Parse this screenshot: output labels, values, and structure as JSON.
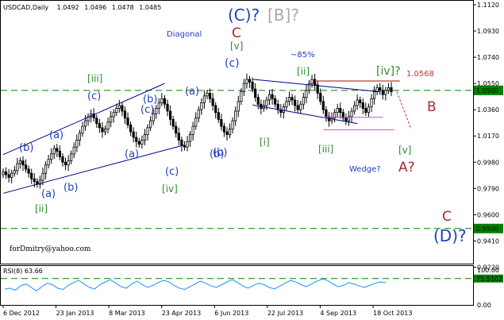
{
  "header": {
    "symbol": "USDCAD,Daily",
    "open": "1.0492",
    "high": "1.0496",
    "low": "1.0478",
    "close": "1.0485"
  },
  "rsi_header": "RSI(8) 63.66",
  "watermark": "forDmitry@yahoo.com",
  "colors": {
    "candle": "#000000",
    "dashed_green": "#008000",
    "channel": "#00008b",
    "wave_blue": "#1f3fbf",
    "wave_green": "#2e8b2e",
    "wave_red": "#a52a2a",
    "gray": "#a9a9a9",
    "target_line": "#c0392b",
    "magenta": "#dd44dd",
    "rsi_line": "#1e90ff",
    "price_badge_bg": "#008000"
  },
  "chart_data": {
    "type": "candlestick",
    "price_axis": {
      "min": 0.924,
      "max": 1.112,
      "ticks": [
        "1.1120",
        "1.0930",
        "1.0740",
        "1.0550",
        "1.0360",
        "1.0170",
        "0.9980",
        "0.9790",
        "0.9600",
        "0.9410",
        "0.9220"
      ]
    },
    "x_ticks": [
      "6 Dec 2012",
      "23 Jan 2013",
      "8 Mar 2013",
      "23 Apr 2013",
      "6 Jun 2013",
      "22 Jul 2013",
      "4 Sep 2013",
      "18 Oct 2013"
    ],
    "price_labels": [
      {
        "text": "1.0500",
        "value": 1.05
      },
      {
        "text": "0.9500",
        "value": 0.95
      }
    ],
    "horizontal_levels": [
      1.05,
      0.95
    ],
    "target_level": {
      "text": "1.0568",
      "value": 1.0568
    },
    "rsi": {
      "title": "RSI(8) 63.66",
      "current": 63.66,
      "ticks": [
        "100.00",
        "75.5102",
        "0.00"
      ],
      "levels": [
        75.5102
      ],
      "min": 0,
      "max": 100
    },
    "close_series": [
      0.991,
      0.989,
      0.987,
      0.99,
      0.992,
      0.997,
      0.999,
      0.996,
      0.993,
      0.99,
      0.986,
      0.984,
      0.982,
      0.985,
      0.99,
      0.996,
      1.0,
      1.004,
      1.008,
      1.006,
      1.002,
      0.998,
      0.996,
      0.999,
      1.004,
      1.009,
      1.014,
      1.019,
      1.024,
      1.028,
      1.031,
      1.033,
      1.03,
      1.026,
      1.023,
      1.02,
      1.022,
      1.027,
      1.031,
      1.034,
      1.037,
      1.039,
      1.035,
      1.03,
      1.025,
      1.02,
      1.016,
      1.013,
      1.011,
      1.014,
      1.018,
      1.023,
      1.028,
      1.033,
      1.037,
      1.041,
      1.044,
      1.04,
      1.035,
      1.029,
      1.024,
      1.019,
      1.014,
      1.01,
      1.009,
      1.013,
      1.018,
      1.024,
      1.03,
      1.036,
      1.041,
      1.046,
      1.048,
      1.044,
      1.039,
      1.034,
      1.029,
      1.024,
      1.02,
      1.018,
      1.022,
      1.028,
      1.035,
      1.042,
      1.049,
      1.055,
      1.058,
      1.056,
      1.051,
      1.045,
      1.04,
      1.037,
      1.039,
      1.043,
      1.047,
      1.044,
      1.04,
      1.036,
      1.034,
      1.038,
      1.042,
      1.045,
      1.043,
      1.039,
      1.036,
      1.04,
      1.045,
      1.05,
      1.055,
      1.058,
      1.054,
      1.048,
      1.042,
      1.036,
      1.031,
      1.028,
      1.03,
      1.034,
      1.037,
      1.034,
      1.03,
      1.028,
      1.031,
      1.035,
      1.039,
      1.043,
      1.041,
      1.037,
      1.034,
      1.038,
      1.044,
      1.049,
      1.052,
      1.05,
      1.047,
      1.05,
      1.052,
      1.049
    ],
    "rsi_series": [
      45,
      48,
      42,
      55,
      60,
      50,
      40,
      52,
      62,
      58,
      48,
      44,
      56,
      64,
      70,
      60,
      50,
      46,
      58,
      66,
      72,
      62,
      52,
      48,
      60,
      68,
      58,
      50,
      56,
      64,
      70,
      66,
      56,
      48,
      44,
      52,
      60,
      68,
      62,
      54,
      50,
      58,
      66,
      72,
      64,
      54,
      48,
      56,
      62,
      58,
      50,
      46,
      54,
      62,
      70,
      66,
      58,
      52,
      60,
      68,
      74,
      70,
      60,
      52,
      56,
      64,
      60,
      54,
      50,
      56,
      62,
      66,
      63.66
    ]
  },
  "annotations": [
    {
      "text": "(C)?",
      "color": "wave_blue",
      "size": 20,
      "name": "label-C-primary"
    },
    {
      "text": "[B]?",
      "color": "gray",
      "size": 20,
      "name": "label-B-bracket"
    },
    {
      "text": "Diagonal",
      "color": "wave_blue",
      "size": 10,
      "name": "label-diagonal"
    },
    {
      "text": "C",
      "color": "wave_red",
      "size": 17,
      "name": "label-C-red-top"
    },
    {
      "text": "[v]",
      "color": "wave_green",
      "size": 12,
      "name": "label-v-top"
    },
    {
      "text": "(c)",
      "color": "wave_blue",
      "size": 14,
      "name": "label-c-top"
    },
    {
      "text": "~85%",
      "color": "wave_blue",
      "size": 10,
      "name": "label-85pct"
    },
    {
      "text": "[ii]",
      "color": "wave_green",
      "size": 12,
      "name": "label-ii-right"
    },
    {
      "text": "[iv]?",
      "color": "wave_green",
      "size": 14,
      "name": "label-iv-q"
    },
    {
      "text": "[iii]",
      "color": "wave_green",
      "size": 12,
      "name": "label-iii-left"
    },
    {
      "text": "(c)",
      "color": "wave_blue",
      "size": 13,
      "name": "label-c-left"
    },
    {
      "text": "(a)",
      "color": "wave_blue",
      "size": 13,
      "name": "label-a-mid"
    },
    {
      "text": "(b)",
      "color": "wave_blue",
      "size": 13,
      "name": "label-b-mid"
    },
    {
      "text": "(a)",
      "color": "wave_blue",
      "size": 13,
      "name": "label-a-left"
    },
    {
      "text": "(b)",
      "color": "wave_blue",
      "size": 13,
      "name": "label-b-left"
    },
    {
      "text": "(a)",
      "color": "wave_blue",
      "size": 13,
      "name": "label-a-low"
    },
    {
      "text": "(c)",
      "color": "wave_blue",
      "size": 13,
      "name": "label-c-low"
    },
    {
      "text": "(b)",
      "color": "wave_blue",
      "size": 13,
      "name": "label-b-low"
    },
    {
      "text": "[ii]",
      "color": "wave_green",
      "size": 12,
      "name": "label-ii-left"
    },
    {
      "text": "(a)",
      "color": "wave_blue",
      "size": 13,
      "name": "label-a-mid2"
    },
    {
      "text": "(b)",
      "color": "wave_blue",
      "size": 13,
      "name": "label-b-mid2"
    },
    {
      "text": "(c)",
      "color": "wave_blue",
      "size": 13,
      "name": "label-c-mid2"
    },
    {
      "text": "[iv]",
      "color": "wave_green",
      "size": 12,
      "name": "label-iv-mid"
    },
    {
      "text": "(b)",
      "color": "wave_blue",
      "size": 13,
      "name": "label-b-mid3"
    },
    {
      "text": "[i]",
      "color": "wave_green",
      "size": 12,
      "name": "label-i-right"
    },
    {
      "text": "[iii]",
      "color": "wave_green",
      "size": 12,
      "name": "label-iii-right"
    },
    {
      "text": "1.0568",
      "color": "target_line",
      "size": 10,
      "name": "label-target-1-0568"
    },
    {
      "text": "B",
      "color": "wave_red",
      "size": 17,
      "name": "label-B-red"
    },
    {
      "text": "[v]",
      "color": "wave_green",
      "size": 12,
      "name": "label-v-right"
    },
    {
      "text": "Wedge?",
      "color": "wave_blue",
      "size": 10,
      "name": "label-wedge"
    },
    {
      "text": "A?",
      "color": "wave_red",
      "size": 17,
      "name": "label-A-red"
    },
    {
      "text": "C",
      "color": "wave_red",
      "size": 17,
      "name": "label-C-red-bottom"
    },
    {
      "text": "(D)?",
      "color": "wave_blue",
      "size": 20,
      "name": "label-D-primary"
    }
  ]
}
